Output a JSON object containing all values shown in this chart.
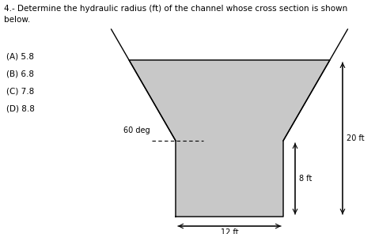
{
  "title_text": "4.- Determine the hydraulic radius (ft) of the channel whose cross section is shown\nbelow.",
  "choices": [
    "(A) 5.8",
    "(B) 6.8",
    "(C) 7.8",
    "(D) 8.8"
  ],
  "bg_color": "#ffffff",
  "shape_color": "#c8c8c8",
  "line_color": "#000000",
  "angle_label": "60 deg",
  "dim_bottom": "12 ft",
  "dim_right1": "8 ft",
  "dim_right2": "20 ft",
  "fig_width": 4.74,
  "fig_height": 2.96,
  "dpi": 100
}
